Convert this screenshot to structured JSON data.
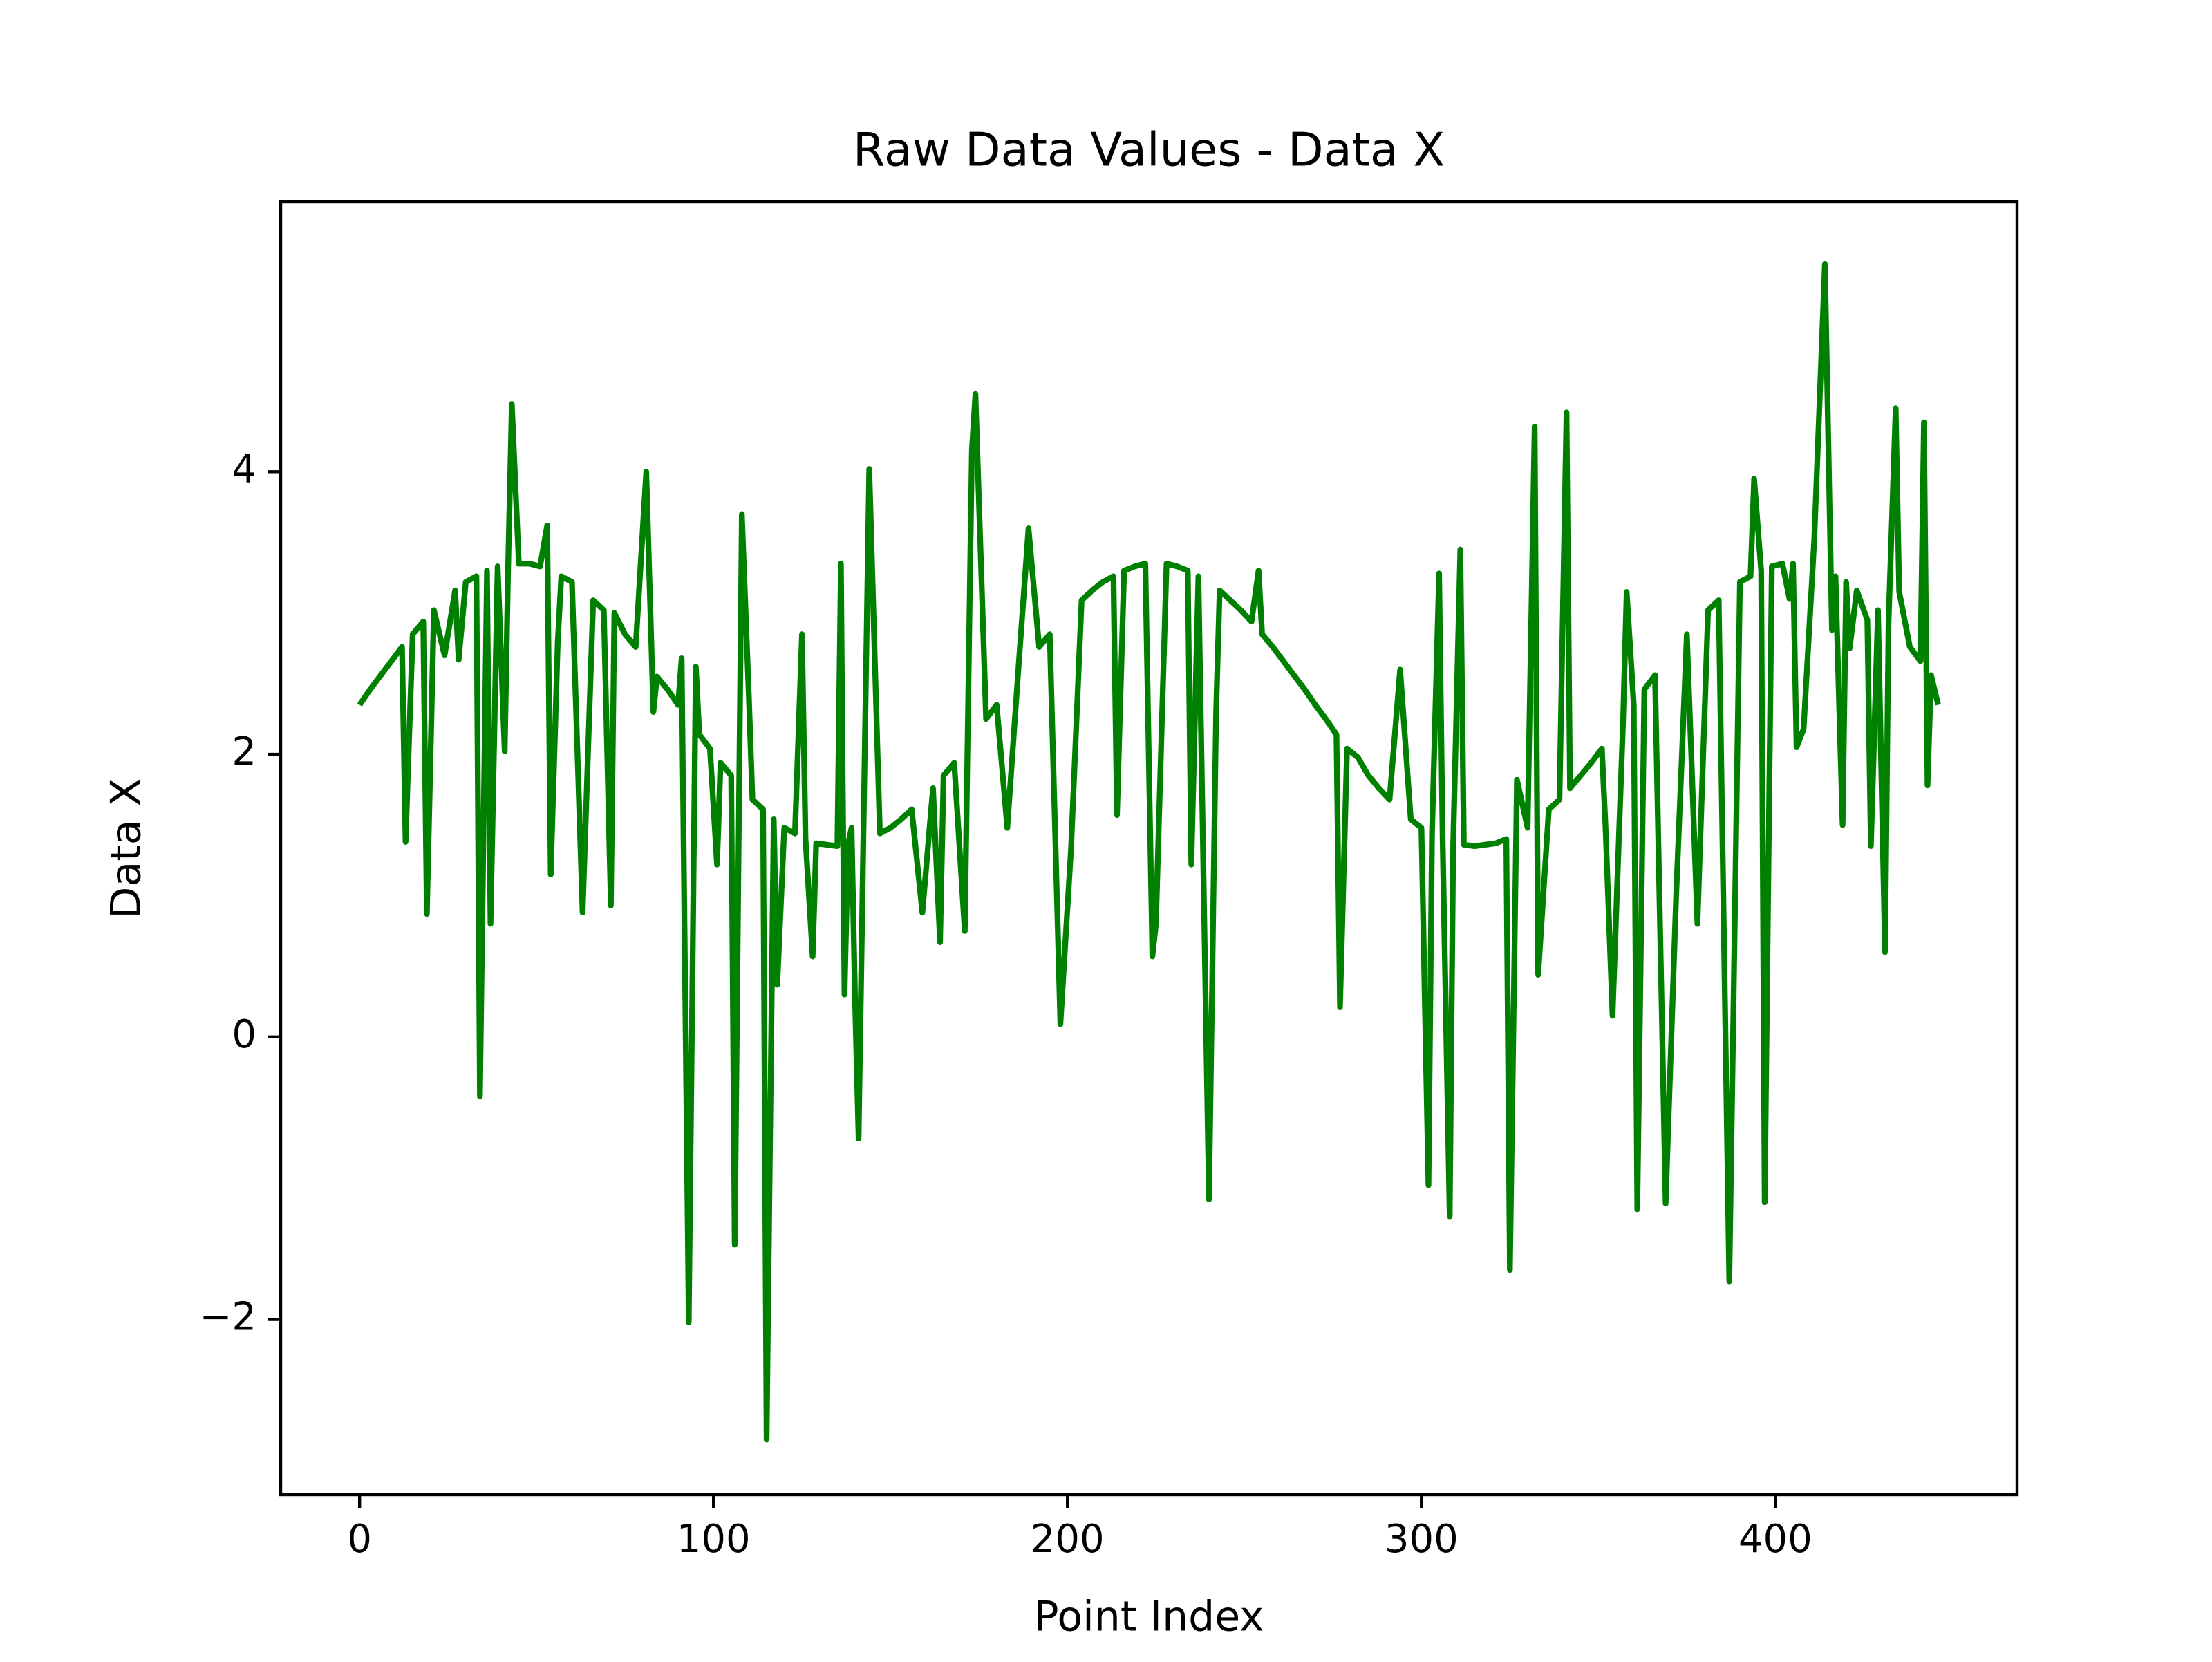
{
  "chart_data": {
    "type": "line",
    "title": "Raw Data Values - Data X",
    "xlabel": "Point Index",
    "ylabel": "Data X",
    "color": "#008000",
    "x": [
      0,
      3,
      6,
      9,
      12,
      13,
      15,
      18,
      19,
      21,
      24,
      27,
      28,
      30,
      33,
      34,
      36,
      37,
      39,
      41,
      42,
      43,
      45,
      48,
      51,
      53,
      54,
      56,
      57,
      60,
      63,
      66,
      69,
      71,
      72,
      75,
      78,
      81,
      83,
      84,
      87,
      90,
      91,
      93,
      95,
      96,
      99,
      101,
      102,
      105,
      106,
      108,
      110,
      111,
      114,
      115,
      117,
      118,
      120,
      123,
      125,
      126,
      128,
      129,
      132,
      135,
      136,
      137,
      138,
      139,
      140,
      141,
      144,
      147,
      150,
      153,
      156,
      159,
      162,
      164,
      165,
      168,
      171,
      173,
      174,
      177,
      180,
      183,
      186,
      189,
      192,
      195,
      198,
      201,
      204,
      207,
      210,
      213,
      214,
      216,
      219,
      222,
      224,
      225,
      228,
      231,
      234,
      235,
      237,
      240,
      242,
      243,
      246,
      249,
      252,
      254,
      255,
      258,
      261,
      264,
      267,
      270,
      273,
      276,
      277,
      279,
      282,
      285,
      288,
      291,
      294,
      297,
      300,
      302,
      303,
      305,
      306,
      308,
      309,
      311,
      312,
      315,
      318,
      321,
      324,
      325,
      327,
      330,
      332,
      333,
      336,
      339,
      341,
      342,
      345,
      348,
      351,
      352,
      354,
      357,
      358,
      360,
      361,
      363,
      366,
      369,
      372,
      375,
      378,
      381,
      384,
      387,
      390,
      393,
      394,
      396,
      397,
      399,
      402,
      404,
      405,
      406,
      408,
      411,
      414,
      416,
      417,
      419,
      420,
      421,
      423,
      426,
      427,
      429,
      431,
      432,
      434,
      435,
      438,
      441,
      442,
      443,
      444,
      446
    ],
    "values": [
      2.35,
      2.46,
      2.56,
      2.66,
      2.76,
      1.38,
      2.85,
      2.94,
      0.87,
      3.02,
      2.7,
      3.16,
      2.67,
      3.22,
      3.26,
      -0.42,
      3.3,
      0.8,
      3.33,
      2.02,
      3.35,
      4.48,
      3.35,
      3.35,
      3.33,
      3.62,
      1.15,
      2.8,
      3.26,
      3.22,
      0.88,
      3.09,
      3.02,
      0.93,
      3.0,
      2.85,
      2.76,
      4.0,
      2.3,
      2.55,
      2.46,
      2.35,
      2.68,
      -2.02,
      2.62,
      2.14,
      2.04,
      1.22,
      1.94,
      1.85,
      -1.47,
      3.7,
      2.4,
      1.68,
      1.61,
      -2.85,
      1.54,
      0.37,
      1.48,
      1.44,
      2.85,
      1.4,
      0.57,
      1.37,
      1.36,
      1.35,
      3.35,
      0.3,
      1.36,
      1.48,
      0.25,
      -0.72,
      4.02,
      1.44,
      1.48,
      1.54,
      1.61,
      0.88,
      1.76,
      0.67,
      1.85,
      1.94,
      0.75,
      4.15,
      4.55,
      2.25,
      2.35,
      1.48,
      2.56,
      3.6,
      2.76,
      2.85,
      0.09,
      1.33,
      3.09,
      3.16,
      3.22,
      3.26,
      1.57,
      3.3,
      3.33,
      3.35,
      0.57,
      0.8,
      3.35,
      3.33,
      3.3,
      1.22,
      3.26,
      -1.15,
      2.3,
      3.16,
      3.09,
      3.02,
      2.94,
      3.3,
      2.85,
      2.76,
      2.66,
      2.56,
      2.46,
      2.35,
      2.25,
      2.14,
      0.21,
      2.04,
      1.98,
      1.85,
      1.76,
      1.68,
      2.6,
      1.54,
      1.48,
      -1.05,
      1.44,
      3.28,
      1.4,
      -1.27,
      1.37,
      3.45,
      1.36,
      1.35,
      1.36,
      1.37,
      1.4,
      -1.65,
      1.82,
      1.48,
      4.32,
      0.44,
      1.61,
      1.68,
      4.42,
      1.76,
      1.85,
      1.94,
      2.04,
      1.5,
      0.15,
      2.25,
      3.15,
      2.35,
      -1.22,
      2.46,
      2.56,
      -1.18,
      1.01,
      2.85,
      0.8,
      3.02,
      3.09,
      -1.73,
      3.22,
      3.26,
      3.95,
      3.3,
      -1.17,
      3.33,
      3.35,
      3.1,
      3.35,
      2.05,
      2.18,
      3.52,
      5.47,
      2.88,
      3.26,
      1.5,
      3.22,
      2.75,
      3.16,
      2.95,
      1.35,
      3.02,
      0.6,
      2.94,
      4.45,
      3.15,
      2.76,
      2.66,
      4.35,
      1.78,
      2.56,
      2.35
    ],
    "xlim": [
      -22.3,
      468.3
    ],
    "ylim": [
      -3.24,
      5.91
    ],
    "xticks": [
      0,
      100,
      200,
      300,
      400
    ],
    "yticks": [
      {
        "value": -2,
        "label": "−2"
      },
      0,
      2,
      4
    ]
  }
}
